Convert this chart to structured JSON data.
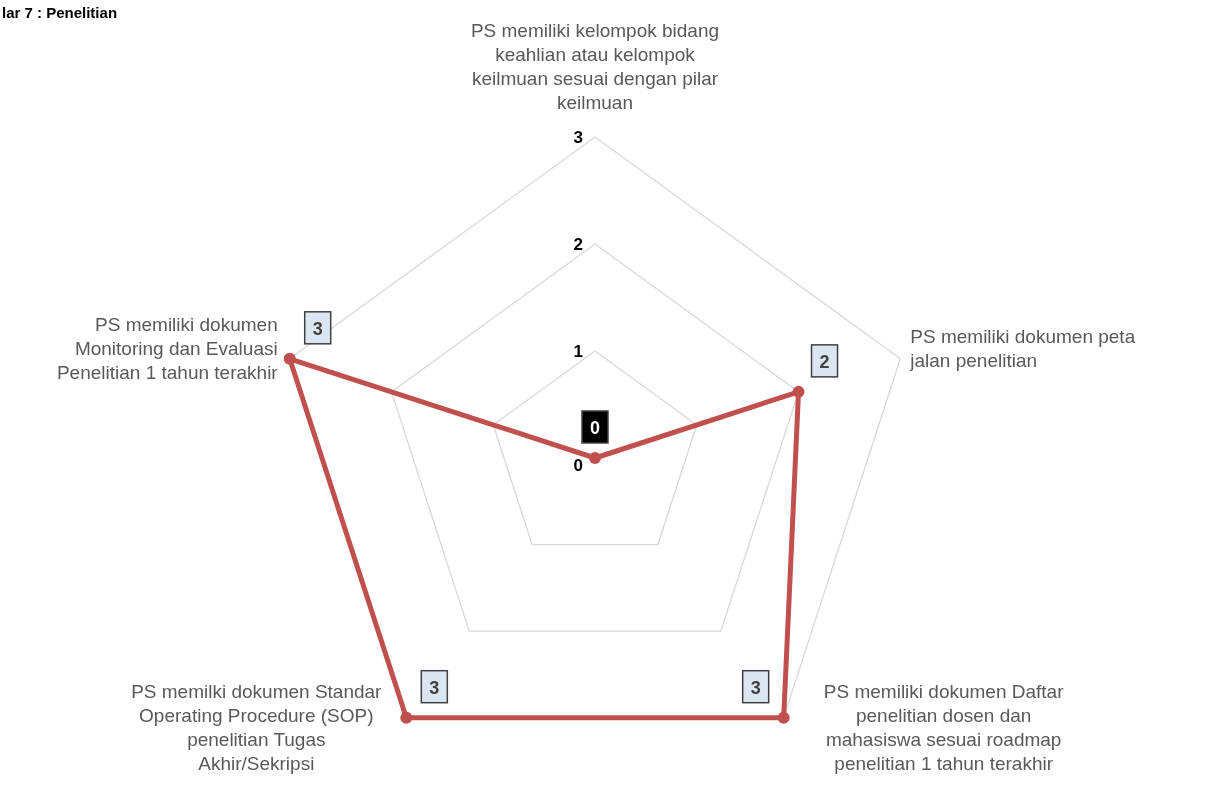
{
  "chart_data": {
    "type": "radar",
    "title": "lar 7 : Penelitian",
    "categories": [
      "PS memiliki kelompok bidang keahlian atau kelompok keilmuan sesuai dengan pilar keilmuan",
      "PS memiliki dokumen peta jalan penelitian",
      "PS memiliki dokumen Daftar penelitian dosen dan mahasiswa sesuai roadmap penelitian 1 tahun terakhir",
      "PS memilki dokumen Standar Operating Procedure (SOP) penelitian Tugas Akhir/Sekripsi",
      "PS memiliki dokumen Monitoring dan Evaluasi Penelitian 1 tahun terakhir"
    ],
    "series": [
      {
        "color": "#c0504d",
        "values": [
          0,
          2,
          3,
          3,
          3
        ],
        "value_labels": [
          "0",
          "2",
          "3",
          "3",
          "3"
        ]
      }
    ],
    "ylim": [
      0,
      3
    ],
    "yticks": [
      0,
      1,
      2,
      3
    ],
    "grid": true,
    "marker": "circle"
  }
}
